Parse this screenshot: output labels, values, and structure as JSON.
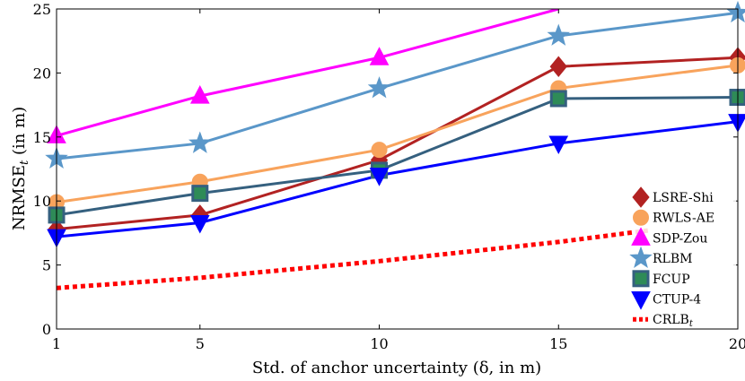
{
  "chart_data": {
    "type": "line",
    "xlabel": "Std. of anchor uncertainty (δ, in m)",
    "ylabel": "NRMSE",
    "ylabel_sub": "t",
    "ylabel_unit": " (in m)",
    "x": [
      1,
      5,
      10,
      15,
      20
    ],
    "xlim": [
      1,
      20
    ],
    "ylim": [
      0,
      25
    ],
    "xticks": [
      1,
      5,
      10,
      15,
      20
    ],
    "yticks": [
      0,
      5,
      10,
      15,
      20,
      25
    ],
    "legend_position": "lower-right",
    "series": [
      {
        "name": "LSRE-Shi",
        "color": "#b22222",
        "marker": "diamond",
        "values": [
          7.8,
          8.9,
          13.2,
          20.5,
          21.2
        ]
      },
      {
        "name": "RWLS-AE",
        "color": "#f8a35c",
        "marker": "circle",
        "values": [
          9.9,
          11.5,
          14.0,
          18.8,
          20.6
        ]
      },
      {
        "name": "SDP-Zou",
        "color": "#ff00ff",
        "marker": "triangle-up",
        "values": [
          15.1,
          18.2,
          21.2,
          25.0,
          null
        ]
      },
      {
        "name": "RLBM",
        "color": "#5a97c9",
        "marker": "star",
        "values": [
          13.3,
          14.5,
          18.8,
          22.9,
          24.7
        ]
      },
      {
        "name": "FCUP",
        "color": "#35607f",
        "marker": "square",
        "values": [
          8.9,
          10.6,
          12.4,
          18.0,
          18.1
        ]
      },
      {
        "name": "CTUP-4",
        "color": "#0000ff",
        "marker": "triangle-down",
        "values": [
          7.2,
          8.3,
          12.0,
          14.5,
          16.2
        ]
      }
    ],
    "bound": {
      "name": "CRLB",
      "name_sub": "t",
      "color": "#ff0000",
      "style": "dotted",
      "x": [
        1,
        5,
        10,
        15,
        17.5
      ],
      "values": [
        3.2,
        4.0,
        5.3,
        6.8,
        7.7
      ]
    }
  }
}
